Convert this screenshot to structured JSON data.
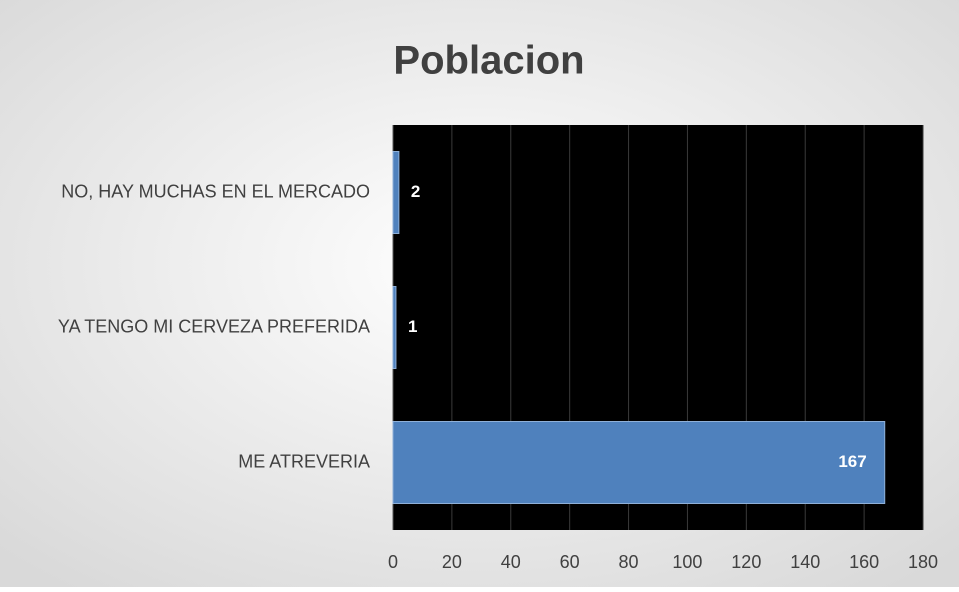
{
  "chart_data": {
    "type": "bar",
    "orientation": "horizontal",
    "title": "Poblacion",
    "categories": [
      "NO, HAY MUCHAS EN EL MERCADO",
      "YA TENGO MI CERVEZA PREFERIDA",
      "ME ATREVERIA"
    ],
    "values": [
      2,
      1,
      167
    ],
    "color": "#4f81bd",
    "xlim": [
      0,
      180
    ],
    "xticks": [
      0,
      20,
      40,
      60,
      80,
      100,
      120,
      140,
      160,
      180
    ],
    "grid": true
  }
}
